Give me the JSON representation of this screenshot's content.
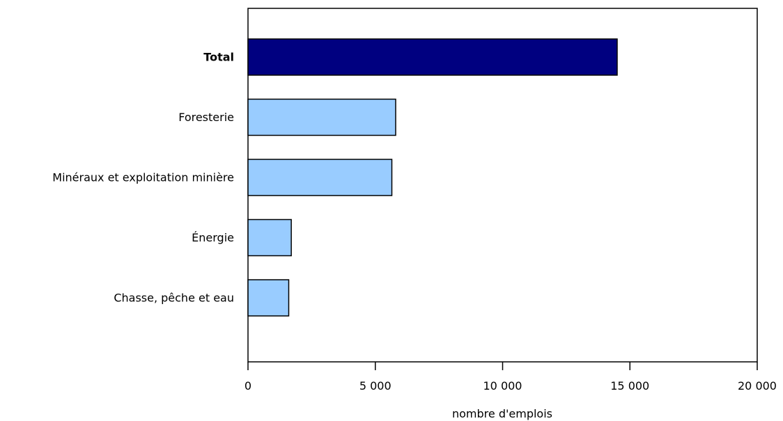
{
  "chart_data": {
    "type": "bar",
    "orientation": "horizontal",
    "categories": [
      "Total",
      "Foresterie",
      "Minéraux et exploitation minière",
      "Énergie",
      "Chasse, pêche et eau"
    ],
    "values": [
      14500,
      5800,
      5650,
      1700,
      1600
    ],
    "highlight_category": "Total",
    "xlabel": "nombre d'emplois",
    "xlim": [
      0,
      20000
    ],
    "xticks": [
      0,
      5000,
      10000,
      15000,
      20000
    ],
    "xtick_labels": [
      "0",
      "5 000",
      "10 000",
      "15 000",
      "20 000"
    ],
    "grid": false,
    "legend": "none",
    "colors": {
      "highlight": "#000080",
      "bar": "#99ccff",
      "stroke": "#000000"
    }
  }
}
